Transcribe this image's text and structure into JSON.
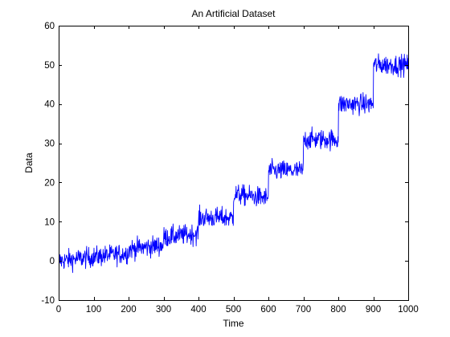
{
  "chart_data": {
    "type": "line",
    "title": "An Artificial Dataset",
    "xlabel": "Time",
    "ylabel": "Data",
    "xlim": [
      0,
      1000
    ],
    "ylim": [
      -10,
      60
    ],
    "xticks": [
      0,
      100,
      200,
      300,
      400,
      500,
      600,
      700,
      800,
      900,
      1000
    ],
    "yticks": [
      -10,
      0,
      10,
      20,
      30,
      40,
      50,
      60
    ],
    "grid": false,
    "line_color": "#0000ff",
    "segments": [
      {
        "x_start": 0,
        "x_end": 100,
        "y_start": 0,
        "y_end": 1
      },
      {
        "x_start": 100,
        "x_end": 200,
        "y_start": 1,
        "y_end": 2
      },
      {
        "x_start": 200,
        "x_end": 300,
        "y_start": 3,
        "y_end": 4
      },
      {
        "x_start": 300,
        "x_end": 400,
        "y_start": 6,
        "y_end": 7
      },
      {
        "x_start": 400,
        "x_end": 500,
        "y_start": 11,
        "y_end": 11
      },
      {
        "x_start": 500,
        "x_end": 600,
        "y_start": 17,
        "y_end": 16
      },
      {
        "x_start": 600,
        "x_end": 700,
        "y_start": 23,
        "y_end": 23
      },
      {
        "x_start": 700,
        "x_end": 800,
        "y_start": 31,
        "y_end": 31
      },
      {
        "x_start": 800,
        "x_end": 900,
        "y_start": 40,
        "y_end": 40
      },
      {
        "x_start": 900,
        "x_end": 1000,
        "y_start": 50,
        "y_end": 50
      }
    ],
    "noise_amplitude": 1.3,
    "n_points": 1000
  }
}
